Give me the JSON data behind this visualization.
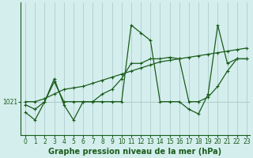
{
  "background_color": "#d4eeed",
  "plot_bg_color": "#d4eeed",
  "grid_color": "#b0cccc",
  "line_color": "#1a5c1a",
  "xlabel": "Graphe pression niveau de la mer (hPa)",
  "xlabel_fontsize": 7,
  "ylabel_label": "1021",
  "ylabel_value": 1021,
  "x_min": 0,
  "x_max": 23,
  "y_ref": 1021,
  "series": [
    {
      "x": [
        0,
        1,
        2,
        3,
        4,
        5,
        6,
        7,
        8,
        9,
        10,
        11,
        12,
        13,
        14,
        15,
        16,
        17,
        18,
        19,
        20,
        21,
        22,
        23
      ],
      "y": [
        1021.0,
        1021.0,
        1021.2,
        1021.5,
        1021.8,
        1021.9,
        1022.0,
        1022.2,
        1022.4,
        1022.6,
        1022.8,
        1023.0,
        1023.2,
        1023.4,
        1023.6,
        1023.7,
        1023.8,
        1023.9,
        1024.0,
        1024.1,
        1024.2,
        1024.3,
        1024.4,
        1024.5
      ]
    },
    {
      "x": [
        0,
        1,
        2,
        3,
        4,
        5,
        6,
        7,
        8,
        9,
        10,
        11,
        12,
        13,
        14,
        15,
        16,
        17,
        18,
        19,
        20,
        21,
        22,
        23
      ],
      "y": [
        1020.8,
        1020.5,
        1021.0,
        1022.3,
        1021.0,
        1021.0,
        1021.0,
        1021.0,
        1021.5,
        1021.8,
        1022.5,
        1023.5,
        1023.5,
        1023.8,
        1023.8,
        1023.9,
        1023.8,
        1021.0,
        1021.0,
        1021.3,
        1022.0,
        1023.0,
        1023.8,
        1023.8
      ]
    },
    {
      "x": [
        0,
        1,
        2,
        3,
        4,
        5,
        6,
        7,
        8,
        9,
        10,
        11,
        12,
        13,
        14,
        15,
        16,
        17,
        18,
        19,
        20,
        21,
        22,
        23
      ],
      "y": [
        1020.3,
        1019.8,
        1021.0,
        1022.5,
        1020.8,
        1019.8,
        1021.0,
        1021.0,
        1021.0,
        1021.0,
        1021.0,
        1026.0,
        1025.5,
        1025.0,
        1021.0,
        1021.0,
        1021.0,
        1020.5,
        1020.2,
        1021.5,
        1026.0,
        1023.5,
        1023.8,
        1023.8
      ]
    }
  ],
  "y_min": 1018.8,
  "y_max": 1027.5,
  "tick_fontsize": 5.5,
  "marker": "+",
  "markersize": 3.5,
  "linewidth": 0.9
}
